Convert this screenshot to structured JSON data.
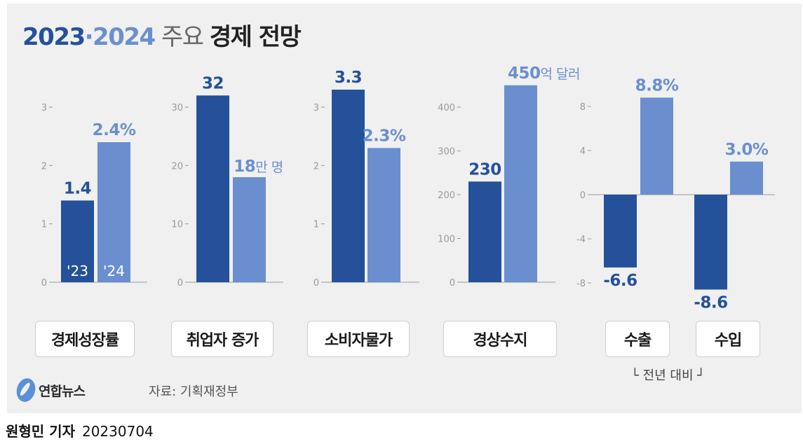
{
  "title": {
    "part1": "2023",
    "part2": "·2024",
    "part3": " 주요 ",
    "part4": "경제 전망"
  },
  "colors": {
    "y2023": "#24519a",
    "y2024": "#6b8fce",
    "panel": "#f0f0f0"
  },
  "year_labels": [
    "'23",
    "'24"
  ],
  "chart_data": [
    {
      "type": "bar",
      "category": "경제성장률",
      "categories": [
        "'23",
        "'24"
      ],
      "values": [
        1.4,
        2.4
      ],
      "labels": [
        "1.4",
        "2.4%"
      ],
      "yticks": [
        0,
        1,
        2,
        3
      ],
      "ylim": [
        0,
        3
      ]
    },
    {
      "type": "bar",
      "category": "취업자 증가",
      "categories": [
        "'23",
        "'24"
      ],
      "values": [
        32,
        18
      ],
      "labels": [
        "32",
        "18만 명"
      ],
      "yticks": [
        0,
        10,
        20,
        30
      ],
      "ylim": [
        0,
        30
      ]
    },
    {
      "type": "bar",
      "category": "소비자물가",
      "categories": [
        "'23",
        "'24"
      ],
      "values": [
        3.3,
        2.3
      ],
      "labels": [
        "3.3",
        "2.3%"
      ],
      "yticks": [
        0,
        1,
        2,
        3
      ],
      "ylim": [
        0,
        3
      ]
    },
    {
      "type": "bar",
      "category": "경상수지",
      "categories": [
        "'23",
        "'24"
      ],
      "values": [
        230,
        450
      ],
      "labels": [
        "230",
        "450억 달러"
      ],
      "yticks": [
        0,
        100,
        200,
        300,
        400
      ],
      "ylim": [
        0,
        400
      ]
    },
    {
      "type": "bar",
      "groups": [
        {
          "category": "수출",
          "values": [
            -6.6,
            8.8
          ],
          "labels": [
            "-6.6",
            "8.8%"
          ]
        },
        {
          "category": "수입",
          "values": [
            -8.6,
            3.0
          ],
          "labels": [
            "-8.6",
            "3.0%"
          ]
        }
      ],
      "categories": [
        "'23",
        "'24"
      ],
      "yticks": [
        -8,
        -4,
        0,
        4,
        8
      ],
      "ylim": [
        -8,
        8
      ],
      "note": "└ 전년 대비 ┘"
    }
  ],
  "logo": {
    "name": "연합뉴스",
    "icon": "yonhap-logo-icon"
  },
  "source": "자료: 기획재정부",
  "byline": {
    "reporter": "원형민 기자",
    "date": "20230704"
  }
}
